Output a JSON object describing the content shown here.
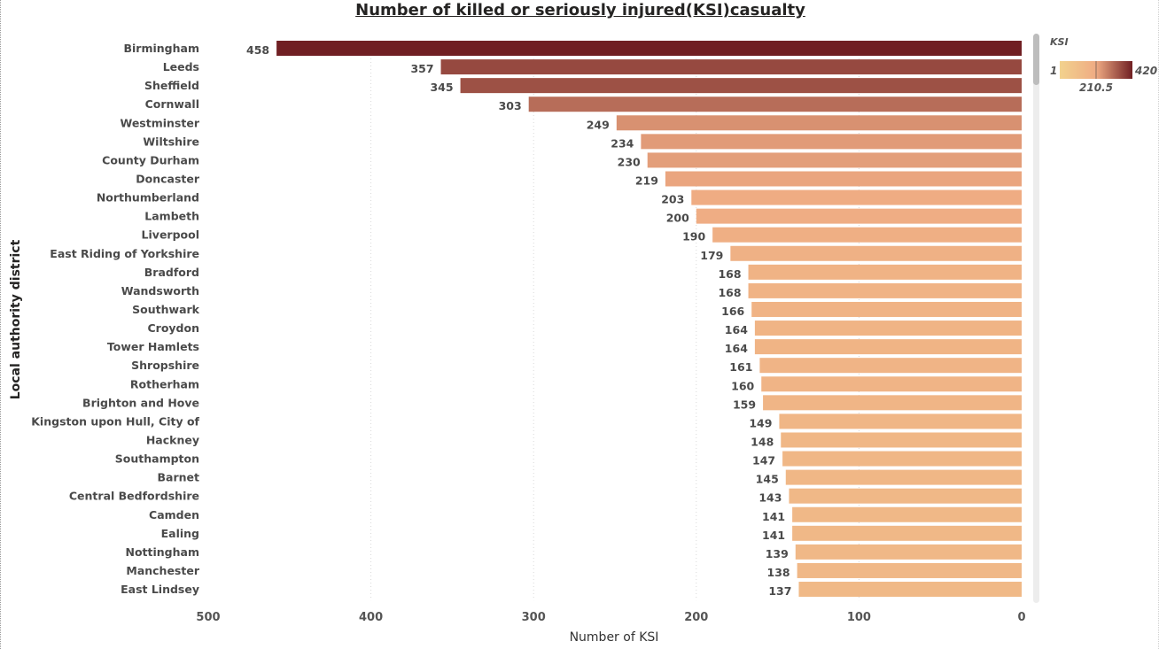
{
  "chart_data": {
    "type": "bar",
    "orientation": "horizontal",
    "title": "Number of killed or seriously injured(KSI)casualty",
    "xlabel": "Number of KSI",
    "ylabel": "Local authority district",
    "x_axis_reversed": true,
    "xlim": [
      0,
      500
    ],
    "xticks": [
      500,
      400,
      300,
      200,
      100,
      0
    ],
    "grid": "vertical-dotted",
    "categories": [
      "Birmingham",
      "Leeds",
      "Sheffield",
      "Cornwall",
      "Westminster",
      "Wiltshire",
      "County Durham",
      "Doncaster",
      "Northumberland",
      "Lambeth",
      "Liverpool",
      "East Riding of Yorkshire",
      "Bradford",
      "Wandsworth",
      "Southwark",
      "Croydon",
      "Tower Hamlets",
      "Shropshire",
      "Rotherham",
      "Brighton and Hove",
      "Kingston upon Hull, City of",
      "Hackney",
      "Southampton",
      "Barnet",
      "Central Bedfordshire",
      "Camden",
      "Ealing",
      "Nottingham",
      "Manchester",
      "East Lindsey"
    ],
    "values": [
      458,
      357,
      345,
      303,
      249,
      234,
      230,
      219,
      203,
      200,
      190,
      179,
      168,
      168,
      166,
      164,
      164,
      161,
      160,
      159,
      149,
      148,
      147,
      145,
      143,
      141,
      141,
      139,
      138,
      137
    ],
    "legend": {
      "title": "KSI",
      "min_label": "1",
      "max_label": "420",
      "mid_label": "210.5",
      "min": 1,
      "mid": 210.5,
      "max": 420,
      "color_low": "#F2D28E",
      "color_mid": "#EFAB83",
      "color_high": "#701F23",
      "placement": "top-right"
    }
  }
}
